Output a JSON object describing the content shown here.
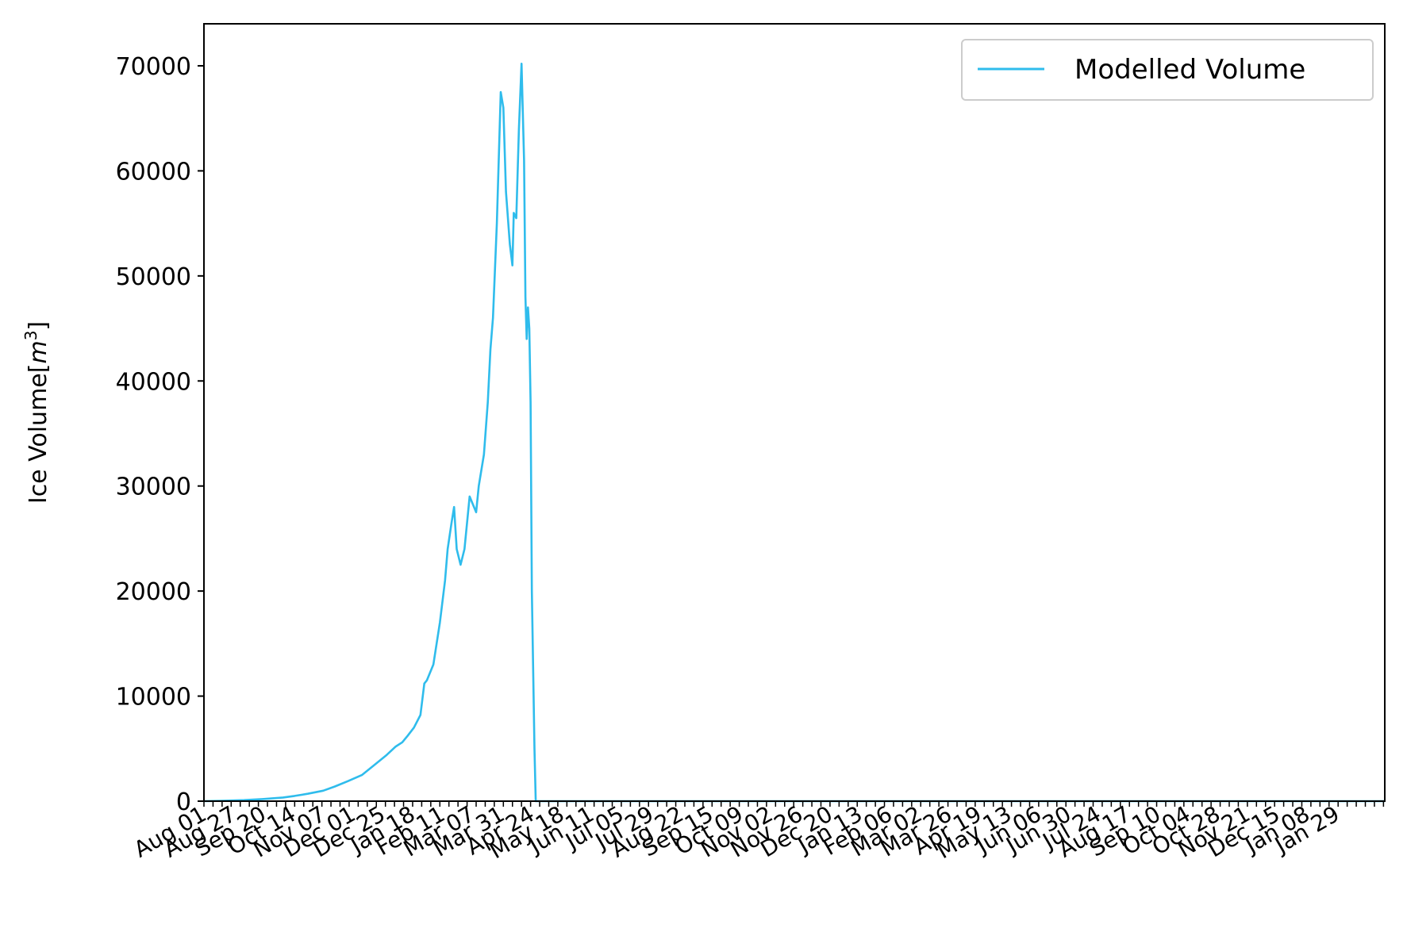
{
  "chart_data": {
    "type": "line",
    "title": "",
    "xlabel": "",
    "ylabel": "Ice Volume[m³]",
    "ylabel_base": "Ice Volume[",
    "ylabel_var": "m",
    "ylabel_exp": "3",
    "ylabel_close": "]",
    "ylim": [
      0,
      74000
    ],
    "xlim": [
      "2021-08-01",
      "2024-01-29"
    ],
    "yticks": [
      0,
      10000,
      20000,
      30000,
      40000,
      50000,
      60000,
      70000
    ],
    "xtick_labels": [
      "Aug 01",
      "Aug 27",
      "Sep 20",
      "Oct 14",
      "Nov 07",
      "Dec 01",
      "Dec 25",
      "Jan 18",
      "Feb 11",
      "Mar 07",
      "Mar 31",
      "Apr 24",
      "May 18",
      "Jun 11",
      "Jul 05",
      "Jul 29",
      "Aug 22",
      "Sep 15",
      "Oct 09",
      "Nov 02",
      "Nov 26",
      "Dec 20",
      "Jan 13",
      "Feb 06",
      "Mar 02",
      "Mar 26",
      "Apr 19",
      "May 13",
      "Jun 06",
      "Jun 30",
      "Jul 24",
      "Aug 17",
      "Sep 10",
      "Oct 04",
      "Oct 28",
      "Nov 21",
      "Dec 15",
      "Jan 08",
      "Jan 29"
    ],
    "grid": false,
    "legend": {
      "position": "top-right"
    },
    "line_color": "#2fbcec",
    "series": [
      {
        "name": "Modelled Volume",
        "color": "#2fbcec",
        "x": [
          "2021-08-01",
          "2021-08-15",
          "2021-09-01",
          "2021-09-15",
          "2021-10-01",
          "2021-10-10",
          "2021-10-20",
          "2021-11-01",
          "2021-11-10",
          "2021-11-20",
          "2021-12-01",
          "2021-12-10",
          "2021-12-20",
          "2021-12-27",
          "2022-01-01",
          "2022-01-05",
          "2022-01-10",
          "2022-01-15",
          "2022-01-18",
          "2022-01-20",
          "2022-01-25",
          "2022-01-30",
          "2022-02-03",
          "2022-02-05",
          "2022-02-08",
          "2022-02-10",
          "2022-02-12",
          "2022-02-15",
          "2022-02-18",
          "2022-02-22",
          "2022-02-27",
          "2022-03-01",
          "2022-03-05",
          "2022-03-08",
          "2022-03-10",
          "2022-03-12",
          "2022-03-15",
          "2022-03-18",
          "2022-03-20",
          "2022-03-22",
          "2022-03-25",
          "2022-03-27",
          "2022-03-28",
          "2022-03-30",
          "2022-04-01",
          "2022-04-03",
          "2022-04-05",
          "2022-04-06",
          "2022-04-07",
          "2022-04-08",
          "2022-04-09",
          "2022-04-10",
          "2022-04-11",
          "2022-04-13",
          "2022-04-14",
          "2022-04-15",
          "2022-04-16",
          "2022-04-17",
          "2022-04-18",
          "2022-04-19",
          "2022-04-20",
          "2022-04-22",
          "2022-04-24",
          "2022-04-27",
          "2024-01-29"
        ],
        "y": [
          0,
          30,
          100,
          200,
          350,
          500,
          700,
          1000,
          1400,
          1900,
          2500,
          3400,
          4400,
          5200,
          5600,
          6200,
          7000,
          8200,
          11200,
          11500,
          13000,
          17000,
          21000,
          24000,
          26500,
          28000,
          24000,
          22500,
          24000,
          29000,
          27500,
          30000,
          33000,
          38000,
          43000,
          46000,
          55000,
          67500,
          66000,
          58000,
          53000,
          51000,
          56000,
          55500,
          64000,
          70200,
          61000,
          48000,
          44000,
          47000,
          45000,
          38000,
          20000,
          5000,
          0,
          0,
          0,
          0,
          0,
          0,
          0,
          0,
          0,
          0,
          0
        ]
      }
    ]
  }
}
